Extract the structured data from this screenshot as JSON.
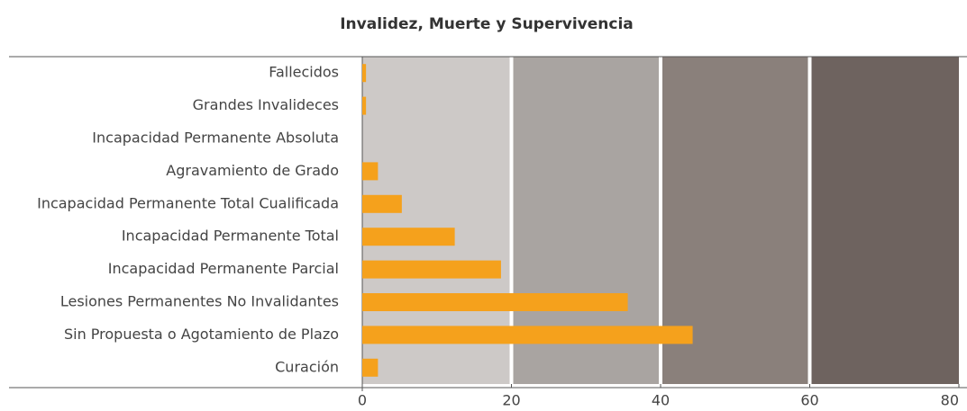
{
  "chart_data": {
    "type": "barh",
    "title": "Invalidez, Muerte y Supervivencia",
    "categories": [
      "Fallecidos",
      "Grandes Invalideces",
      "Incapacidad Permanente Absoluta",
      "Agravamiento de Grado",
      "Incapacidad Permanente Total Cualificada",
      "Incapacidad Permanente Total",
      "Incapacidad Permanente Parcial",
      "Lesiones Permanentes No Invalidantes",
      "Sin Propuesta o Agotamiento de Plazo",
      "Curación"
    ],
    "values": [
      0.5,
      0.5,
      0,
      2.1,
      5.3,
      12.4,
      18.6,
      35.6,
      44.3,
      2.1
    ],
    "color": "#f5a11c",
    "xlim": [
      0,
      80
    ],
    "xticks": [
      0,
      20,
      40,
      60,
      80
    ],
    "band_colors": [
      "#cdc9c7",
      "#a9a4a1",
      "#8a807b",
      "#6e635f"
    ]
  }
}
